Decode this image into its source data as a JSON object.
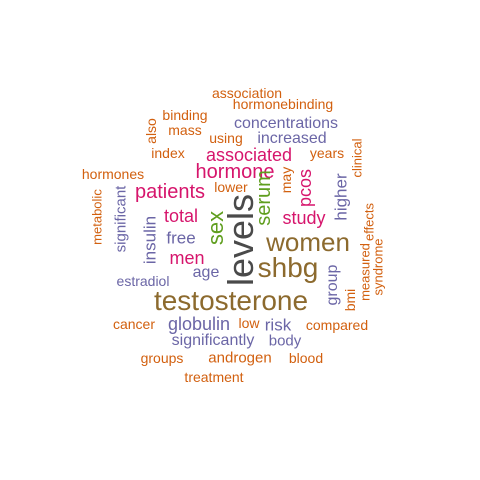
{
  "colors": {
    "brown": "#8C6A2E",
    "dark_gray": "#4A4A4A",
    "magenta": "#D6156C",
    "orange": "#D2600F",
    "purple": "#6B66A6",
    "green": "#5F9E1E",
    "background": "#FFFFFF"
  },
  "words": [
    {
      "text": "association",
      "color": "orange"
    },
    {
      "text": "hormonebinding",
      "color": "orange"
    },
    {
      "text": "binding",
      "color": "orange"
    },
    {
      "text": "mass",
      "color": "orange"
    },
    {
      "text": "also",
      "color": "orange"
    },
    {
      "text": "using",
      "color": "orange"
    },
    {
      "text": "concentrations",
      "color": "purple"
    },
    {
      "text": "increased",
      "color": "purple"
    },
    {
      "text": "index",
      "color": "orange"
    },
    {
      "text": "associated",
      "color": "magenta"
    },
    {
      "text": "years",
      "color": "orange"
    },
    {
      "text": "clinical",
      "color": "orange"
    },
    {
      "text": "hormones",
      "color": "orange"
    },
    {
      "text": "hormone",
      "color": "magenta"
    },
    {
      "text": "may",
      "color": "orange"
    },
    {
      "text": "lower",
      "color": "orange"
    },
    {
      "text": "pcos",
      "color": "magenta"
    },
    {
      "text": "higher",
      "color": "purple"
    },
    {
      "text": "metabolic",
      "color": "orange"
    },
    {
      "text": "significant",
      "color": "purple"
    },
    {
      "text": "patients",
      "color": "magenta"
    },
    {
      "text": "serum",
      "color": "green"
    },
    {
      "text": "effects",
      "color": "orange"
    },
    {
      "text": "total",
      "color": "magenta"
    },
    {
      "text": "study",
      "color": "magenta"
    },
    {
      "text": "insulin",
      "color": "purple"
    },
    {
      "text": "sex",
      "color": "green"
    },
    {
      "text": "free",
      "color": "purple"
    },
    {
      "text": "levels",
      "color": "dark_gray"
    },
    {
      "text": "women",
      "color": "brown"
    },
    {
      "text": "syndrome",
      "color": "orange"
    },
    {
      "text": "measured",
      "color": "orange"
    },
    {
      "text": "men",
      "color": "magenta"
    },
    {
      "text": "shbg",
      "color": "brown"
    },
    {
      "text": "estradiol",
      "color": "purple"
    },
    {
      "text": "age",
      "color": "purple"
    },
    {
      "text": "group",
      "color": "purple"
    },
    {
      "text": "bmi",
      "color": "orange"
    },
    {
      "text": "testosterone",
      "color": "brown"
    },
    {
      "text": "cancer",
      "color": "orange"
    },
    {
      "text": "globulin",
      "color": "purple"
    },
    {
      "text": "low",
      "color": "orange"
    },
    {
      "text": "risk",
      "color": "purple"
    },
    {
      "text": "compared",
      "color": "orange"
    },
    {
      "text": "significantly",
      "color": "purple"
    },
    {
      "text": "body",
      "color": "purple"
    },
    {
      "text": "groups",
      "color": "orange"
    },
    {
      "text": "androgen",
      "color": "orange"
    },
    {
      "text": "blood",
      "color": "orange"
    },
    {
      "text": "treatment",
      "color": "orange"
    }
  ]
}
